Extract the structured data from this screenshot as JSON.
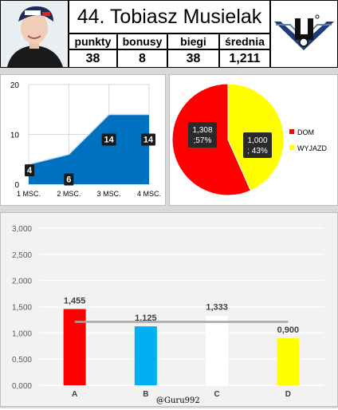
{
  "header": {
    "title": "44. Tobiasz Musielak",
    "stats": [
      {
        "label": "punkty",
        "value": "38"
      },
      {
        "label": "bonusy",
        "value": "8"
      },
      {
        "label": "biegi",
        "value": "38"
      },
      {
        "label": "średnia",
        "value": "1,211"
      }
    ]
  },
  "watermark": "@Guru992",
  "chart_data": [
    {
      "type": "area",
      "categories": [
        "1 MSC.",
        "2 MSC.",
        "3 MSC.",
        "4 MSC."
      ],
      "values": [
        4,
        6,
        14,
        14
      ],
      "data_labels": [
        "4",
        "6",
        "14",
        "14"
      ],
      "ylim": [
        0,
        20
      ],
      "yticks": [
        "0",
        "10",
        "20"
      ],
      "grid": true,
      "color": "#0070c0"
    },
    {
      "type": "pie",
      "slices": [
        {
          "name": "DOM",
          "value": 1.308,
          "label": "1,308\n;57%",
          "color": "#ff0000"
        },
        {
          "name": "WYJAZD",
          "value": 1.0,
          "label": "1,000\n; 43%",
          "color": "#ffff00"
        }
      ],
      "legend": "right"
    },
    {
      "type": "bar",
      "categories": [
        "A",
        "B",
        "C",
        "D"
      ],
      "values": [
        1.455,
        1.125,
        1.333,
        0.9
      ],
      "data_labels": [
        "1,455",
        "1,125",
        "1,333",
        "0,900"
      ],
      "colors": [
        "#ff0000",
        "#00b0f0",
        "#ffffff",
        "#ffff00"
      ],
      "reference_line": 1.211,
      "ylim": [
        0,
        3
      ],
      "yticks": [
        "0,000",
        "0,500",
        "1,000",
        "1,500",
        "2,000",
        "2,500",
        "3,000"
      ],
      "grid": true
    }
  ]
}
